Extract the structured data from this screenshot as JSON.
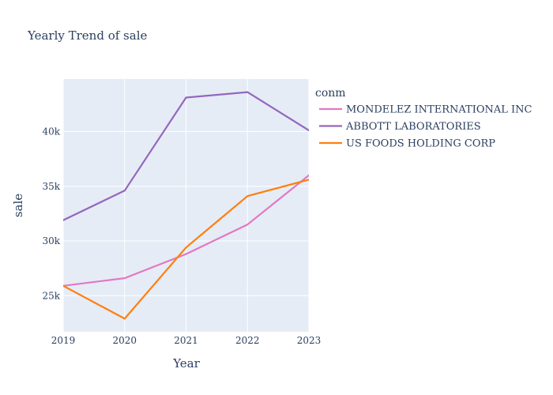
{
  "chart_data": {
    "type": "line",
    "title": "Yearly Trend of sale",
    "xlabel": "Year",
    "ylabel": "sale",
    "x": [
      2019,
      2020,
      2021,
      2022,
      2023
    ],
    "x_ticks": [
      "2019",
      "2020",
      "2021",
      "2022",
      "2023"
    ],
    "y_ticks": [
      {
        "value": 25000,
        "label": "25k"
      },
      {
        "value": 30000,
        "label": "30k"
      },
      {
        "value": 35000,
        "label": "35k"
      },
      {
        "value": 40000,
        "label": "40k"
      }
    ],
    "xlim": [
      2019,
      2023
    ],
    "ylim": [
      21700,
      44800
    ],
    "grid": true,
    "legend": {
      "title": "conm",
      "placement": "right"
    },
    "series": [
      {
        "name": "MONDELEZ INTERNATIONAL INC",
        "color": "#e377c2",
        "values": [
          25900,
          26600,
          28800,
          31500,
          36000
        ]
      },
      {
        "name": "ABBOTT LABORATORIES",
        "color": "#9467bd",
        "values": [
          31900,
          34600,
          43100,
          43600,
          40100
        ]
      },
      {
        "name": "US FOODS HOLDING CORP",
        "color": "#ff7f0e",
        "values": [
          25900,
          22900,
          29400,
          34100,
          35600
        ]
      }
    ]
  },
  "colors": {
    "plot_background": "#e5ecf6",
    "gridline": "#ffffff",
    "text": "#2a3f5f"
  }
}
